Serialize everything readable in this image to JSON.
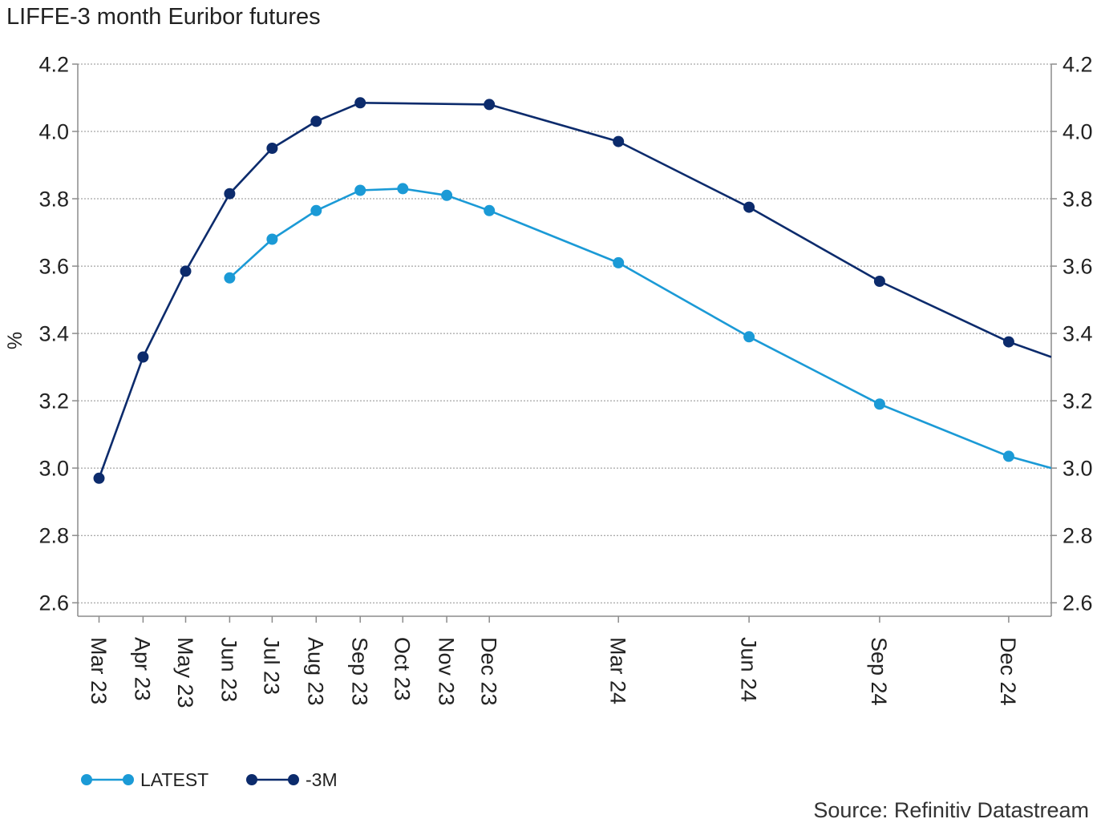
{
  "chart_data": {
    "type": "line",
    "title": "LIFFE-3 month Euribor futures",
    "xlabel": "",
    "ylabel": "%",
    "xlim": [
      "2023-02-28",
      "2025-01-14"
    ],
    "ylim": [
      2.56,
      4.2
    ],
    "yticks": [
      2.6,
      2.8,
      3.0,
      3.2,
      3.4,
      3.6,
      3.8,
      4.0,
      4.2
    ],
    "ytick_labels": [
      "2.6",
      "2.8",
      "3.0",
      "3.2",
      "3.4",
      "3.6",
      "3.8",
      "4.0",
      "4.2"
    ],
    "secondary_y_axis": true,
    "xticks": [
      {
        "x": "2023-03-15",
        "label": "Mar 23"
      },
      {
        "x": "2023-04-15",
        "label": "Apr 23"
      },
      {
        "x": "2023-05-15",
        "label": "May 23"
      },
      {
        "x": "2023-06-15",
        "label": "Jun 23"
      },
      {
        "x": "2023-07-15",
        "label": "Jul 23"
      },
      {
        "x": "2023-08-15",
        "label": "Aug 23"
      },
      {
        "x": "2023-09-15",
        "label": "Sep 23"
      },
      {
        "x": "2023-10-15",
        "label": "Oct 23"
      },
      {
        "x": "2023-11-15",
        "label": "Nov 23"
      },
      {
        "x": "2023-12-15",
        "label": "Dec 23"
      },
      {
        "x": "2024-03-15",
        "label": "Mar 24"
      },
      {
        "x": "2024-06-15",
        "label": "Jun 24"
      },
      {
        "x": "2024-09-15",
        "label": "Sep 24"
      },
      {
        "x": "2024-12-15",
        "label": "Dec 24"
      }
    ],
    "grid": true,
    "legend": "bottom-left",
    "series": [
      {
        "name": "LATEST",
        "color": "#1b9ad6",
        "markers": true,
        "points": [
          {
            "x": "2023-06-15",
            "y": 3.565
          },
          {
            "x": "2023-07-15",
            "y": 3.68
          },
          {
            "x": "2023-08-15",
            "y": 3.765
          },
          {
            "x": "2023-09-15",
            "y": 3.825
          },
          {
            "x": "2023-10-15",
            "y": 3.83
          },
          {
            "x": "2023-11-15",
            "y": 3.81
          },
          {
            "x": "2023-12-15",
            "y": 3.765
          },
          {
            "x": "2024-03-15",
            "y": 3.61
          },
          {
            "x": "2024-06-15",
            "y": 3.39
          },
          {
            "x": "2024-09-15",
            "y": 3.19
          },
          {
            "x": "2024-12-15",
            "y": 3.035
          },
          {
            "x": "2025-01-14",
            "y": 3.0
          }
        ]
      },
      {
        "name": "-3M",
        "color": "#0c2b6c",
        "markers": true,
        "points": [
          {
            "x": "2023-03-15",
            "y": 2.97
          },
          {
            "x": "2023-04-15",
            "y": 3.33
          },
          {
            "x": "2023-05-15",
            "y": 3.585
          },
          {
            "x": "2023-06-15",
            "y": 3.815
          },
          {
            "x": "2023-07-15",
            "y": 3.95
          },
          {
            "x": "2023-08-15",
            "y": 4.03
          },
          {
            "x": "2023-09-15",
            "y": 4.085
          },
          {
            "x": "2023-12-15",
            "y": 4.08
          },
          {
            "x": "2024-03-15",
            "y": 3.97
          },
          {
            "x": "2024-06-15",
            "y": 3.775
          },
          {
            "x": "2024-09-15",
            "y": 3.555
          },
          {
            "x": "2024-12-15",
            "y": 3.375
          },
          {
            "x": "2025-01-14",
            "y": 3.33
          }
        ]
      }
    ]
  },
  "source": "Source: Refinitiv Datastream"
}
